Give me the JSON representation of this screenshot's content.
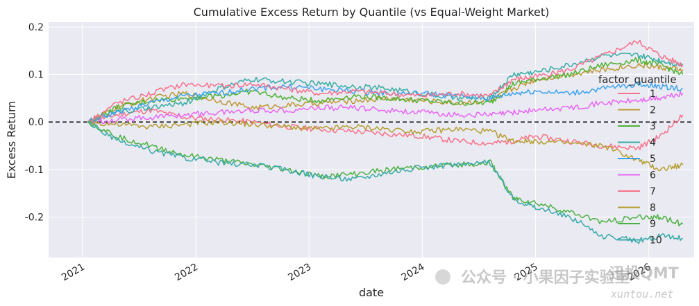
{
  "chart_data": {
    "type": "line",
    "title": "Cumulative Excess Return by Quantile (vs Equal-Weight Market)",
    "xlabel": "date",
    "ylabel": "Excess Return",
    "xlim": [
      2020.7,
      2026.4
    ],
    "ylim": [
      -0.285,
      0.21
    ],
    "xticks": [
      {
        "value": 2021,
        "label": "2021"
      },
      {
        "value": 2022,
        "label": "2022"
      },
      {
        "value": 2023,
        "label": "2023"
      },
      {
        "value": 2024,
        "label": "2024"
      },
      {
        "value": 2025,
        "label": "2025"
      },
      {
        "value": 2026,
        "label": "2026"
      }
    ],
    "yticks": [
      {
        "value": 0.2,
        "label": "0.2"
      },
      {
        "value": 0.1,
        "label": "0.1"
      },
      {
        "value": 0.0,
        "label": "0.0"
      },
      {
        "value": -0.1,
        "label": "-0.1"
      },
      {
        "value": -0.2,
        "label": "-0.2"
      }
    ],
    "grid": true,
    "reference_line": {
      "y": 0,
      "style": "dashed",
      "color": "#000000"
    },
    "legend": {
      "title": "factor_quantile",
      "placement": "right"
    },
    "series": [
      {
        "name": "1",
        "color": "#f77189",
        "x": [
          2021.05,
          2021.3,
          2021.6,
          2021.9,
          2022.2,
          2022.5,
          2022.8,
          2023.1,
          2023.4,
          2023.7,
          2024.0,
          2024.3,
          2024.6,
          2024.8,
          2025.0,
          2025.3,
          2025.6,
          2025.9,
          2026.1,
          2026.3
        ],
        "y": [
          0.0,
          0.015,
          0.025,
          0.01,
          0.005,
          0.0,
          -0.01,
          -0.015,
          -0.02,
          -0.025,
          -0.03,
          -0.04,
          -0.045,
          -0.04,
          -0.03,
          -0.04,
          -0.05,
          -0.055,
          -0.03,
          0.015
        ]
      },
      {
        "name": "2",
        "color": "#bb9832",
        "x": [
          2021.05,
          2021.3,
          2021.6,
          2021.9,
          2022.2,
          2022.5,
          2022.8,
          2023.1,
          2023.4,
          2023.7,
          2024.0,
          2024.3,
          2024.6,
          2024.8,
          2025.0,
          2025.3,
          2025.6,
          2025.9,
          2026.1,
          2026.3
        ],
        "y": [
          0.0,
          0.03,
          0.05,
          0.06,
          0.045,
          0.03,
          0.035,
          0.04,
          0.045,
          0.05,
          0.045,
          0.04,
          0.045,
          0.07,
          0.09,
          0.1,
          0.11,
          0.12,
          0.115,
          0.11
        ]
      },
      {
        "name": "3",
        "color": "#50b131",
        "x": [
          2021.05,
          2021.3,
          2021.6,
          2021.9,
          2022.2,
          2022.5,
          2022.8,
          2023.1,
          2023.4,
          2023.7,
          2024.0,
          2024.3,
          2024.6,
          2024.8,
          2025.0,
          2025.3,
          2025.6,
          2025.9,
          2026.1,
          2026.3
        ],
        "y": [
          0.0,
          0.03,
          0.045,
          0.05,
          0.055,
          0.065,
          0.05,
          0.045,
          0.055,
          0.05,
          0.045,
          0.04,
          0.04,
          0.08,
          0.09,
          0.1,
          0.12,
          0.13,
          0.12,
          0.1
        ]
      },
      {
        "name": "4",
        "color": "#36ada4",
        "x": [
          2021.05,
          2021.3,
          2021.6,
          2021.9,
          2022.2,
          2022.5,
          2022.8,
          2023.1,
          2023.4,
          2023.7,
          2024.0,
          2024.3,
          2024.6,
          2024.8,
          2025.0,
          2025.3,
          2025.6,
          2025.9,
          2026.1,
          2026.3
        ],
        "y": [
          0.0,
          0.02,
          0.03,
          0.04,
          0.07,
          0.09,
          0.085,
          0.08,
          0.075,
          0.07,
          0.06,
          0.05,
          0.05,
          0.1,
          0.105,
          0.12,
          0.14,
          0.14,
          0.13,
          0.12
        ]
      },
      {
        "name": "5",
        "color": "#3ba3ec",
        "x": [
          2021.05,
          2021.3,
          2021.6,
          2021.9,
          2022.2,
          2022.5,
          2022.8,
          2023.1,
          2023.4,
          2023.7,
          2024.0,
          2024.3,
          2024.6,
          2024.8,
          2025.0,
          2025.3,
          2025.6,
          2025.9,
          2026.1,
          2026.3
        ],
        "y": [
          0.0,
          0.02,
          0.04,
          0.055,
          0.06,
          0.07,
          0.075,
          0.07,
          0.065,
          0.06,
          0.06,
          0.055,
          0.05,
          0.06,
          0.065,
          0.06,
          0.07,
          0.08,
          0.075,
          0.07
        ]
      },
      {
        "name": "6",
        "color": "#e866f4",
        "x": [
          2021.05,
          2021.3,
          2021.6,
          2021.9,
          2022.2,
          2022.5,
          2022.8,
          2023.1,
          2023.4,
          2023.7,
          2024.0,
          2024.3,
          2024.6,
          2024.8,
          2025.0,
          2025.3,
          2025.6,
          2025.9,
          2026.1,
          2026.3
        ],
        "y": [
          0.0,
          0.005,
          0.01,
          0.015,
          0.02,
          0.025,
          0.025,
          0.03,
          0.03,
          0.025,
          0.02,
          0.015,
          0.015,
          0.02,
          0.025,
          0.03,
          0.04,
          0.045,
          0.05,
          0.06
        ]
      },
      {
        "name": "7",
        "color": "#f7708b",
        "x": [
          2021.05,
          2021.3,
          2021.6,
          2021.9,
          2022.2,
          2022.5,
          2022.8,
          2023.1,
          2023.4,
          2023.7,
          2024.0,
          2024.3,
          2024.6,
          2024.8,
          2025.0,
          2025.3,
          2025.6,
          2025.9,
          2026.1,
          2026.3
        ],
        "y": [
          0.0,
          0.04,
          0.06,
          0.08,
          0.075,
          0.08,
          0.07,
          0.06,
          0.065,
          0.06,
          0.055,
          0.06,
          0.055,
          0.09,
          0.095,
          0.11,
          0.14,
          0.17,
          0.14,
          0.12
        ]
      },
      {
        "name": "8",
        "color": "#b59e31",
        "x": [
          2021.05,
          2021.3,
          2021.6,
          2021.9,
          2022.2,
          2022.5,
          2022.8,
          2023.1,
          2023.4,
          2023.7,
          2024.0,
          2024.3,
          2024.6,
          2024.8,
          2025.0,
          2025.3,
          2025.6,
          2025.9,
          2026.1,
          2026.3
        ],
        "y": [
          0.0,
          -0.005,
          -0.01,
          -0.005,
          0.0,
          -0.005,
          -0.01,
          -0.015,
          -0.01,
          -0.015,
          -0.02,
          -0.015,
          -0.02,
          -0.04,
          -0.04,
          -0.045,
          -0.05,
          -0.08,
          -0.1,
          -0.09
        ]
      },
      {
        "name": "9",
        "color": "#4bb042",
        "x": [
          2021.05,
          2021.3,
          2021.6,
          2021.9,
          2022.2,
          2022.5,
          2022.8,
          2023.1,
          2023.4,
          2023.7,
          2024.0,
          2024.3,
          2024.6,
          2024.8,
          2025.0,
          2025.3,
          2025.6,
          2025.9,
          2026.1,
          2026.3
        ],
        "y": [
          0.0,
          -0.03,
          -0.05,
          -0.07,
          -0.08,
          -0.09,
          -0.1,
          -0.115,
          -0.11,
          -0.1,
          -0.095,
          -0.09,
          -0.085,
          -0.16,
          -0.17,
          -0.19,
          -0.21,
          -0.2,
          -0.2,
          -0.215
        ]
      },
      {
        "name": "10",
        "color": "#38a9a8",
        "x": [
          2021.05,
          2021.3,
          2021.6,
          2021.9,
          2022.2,
          2022.5,
          2022.8,
          2023.1,
          2023.4,
          2023.7,
          2024.0,
          2024.3,
          2024.6,
          2024.8,
          2025.0,
          2025.3,
          2025.6,
          2025.9,
          2026.1,
          2026.3
        ],
        "y": [
          0.0,
          -0.04,
          -0.06,
          -0.075,
          -0.085,
          -0.09,
          -0.1,
          -0.115,
          -0.12,
          -0.105,
          -0.095,
          -0.09,
          -0.085,
          -0.16,
          -0.18,
          -0.2,
          -0.24,
          -0.25,
          -0.24,
          -0.245
        ]
      }
    ]
  },
  "watermark": {
    "line1": "公众号 · 小果因子实验室",
    "line2": "xuntou.net",
    "brand": "迅投QMT"
  }
}
